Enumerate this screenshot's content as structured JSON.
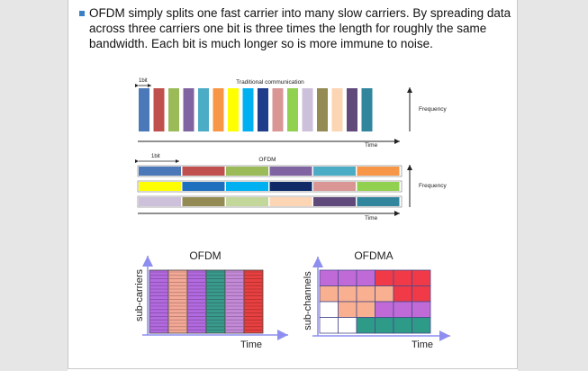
{
  "paragraph": "OFDM simply splits one fast carrier into many slow carriers. By spreading data across three carriers one bit is three times the length for roughly the same bandwidth. Each bit is much longer so is more immune to noise.",
  "traditional": {
    "title": "Traditional communication",
    "bit_label": "1bit",
    "y_label": "Frequency",
    "x_label": "Time",
    "bars": [
      "#4a78b8",
      "#c0504d",
      "#9bbb59",
      "#8064a2",
      "#4bacc6",
      "#f79646",
      "#ffff00",
      "#00b0f0",
      "#1f3d8a",
      "#d99694",
      "#92d050",
      "#ccc0da",
      "#948a54",
      "#fcd5b4",
      "#604a7b",
      "#31859c"
    ]
  },
  "ofdm_strip": {
    "title": "OFDM",
    "bit_label": "1bit",
    "y_label": "Frequency",
    "x_label": "Time",
    "rows": [
      [
        "#4a78b8",
        "#c0504d",
        "#9bbb59",
        "#8064a2",
        "#4bacc6",
        "#f79646"
      ],
      [
        "#ffff00",
        "#1f6fbf",
        "#00b0f0",
        "#0f2a66",
        "#d99694",
        "#92d050"
      ],
      [
        "#ccc0da",
        "#948a54",
        "#c4d79b",
        "#fcd5b4",
        "#604a7b",
        "#31859c"
      ]
    ]
  },
  "ofdm_grid": {
    "title": "OFDM",
    "y_label": "sub-carriers",
    "x_label": "Time",
    "columns": [
      "#b36ae0",
      "#f4a896",
      "#b36ae0",
      "#3a9a8c",
      "#c48ad8",
      "#e84040"
    ]
  },
  "ofdma_grid": {
    "title": "OFDMA",
    "y_label": "sub-channels",
    "x_label": "Time",
    "cells": [
      [
        "#c06ad8",
        "#c06ad8",
        "#c06ad8",
        "#f03a48",
        "#f03a48",
        "#f03a48"
      ],
      [
        "#f8b090",
        "#f8b090",
        "#f8b090",
        "#f8b090",
        "#f03a48",
        "#f03a48"
      ],
      [
        "#ffffff",
        "#f8b090",
        "#f8b090",
        "#c06ad8",
        "#c06ad8",
        "#c06ad8"
      ],
      [
        "#ffffff",
        "#ffffff",
        "#2e9a88",
        "#2e9a88",
        "#2e9a88",
        "#2e9a88"
      ]
    ]
  }
}
